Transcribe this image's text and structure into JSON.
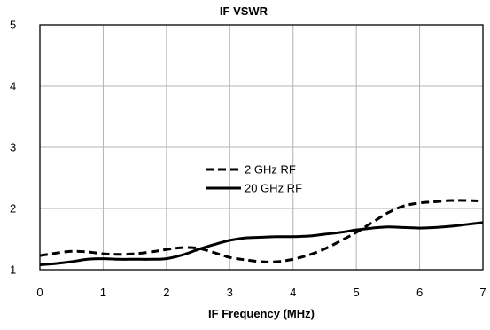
{
  "chart_data": {
    "type": "line",
    "title": "IF VSWR",
    "xlabel": "IF Frequency (MHz)",
    "ylabel": "",
    "xlim": [
      0,
      7
    ],
    "ylim": [
      1,
      5
    ],
    "x_ticks": [
      "0",
      "1",
      "2",
      "3",
      "4",
      "5",
      "6",
      "7"
    ],
    "y_ticks": [
      "1",
      "2",
      "3",
      "4",
      "5"
    ],
    "grid": true,
    "legend_position": "center",
    "series": [
      {
        "name": "2 GHz RF",
        "style": "dashed",
        "color": "#000000",
        "x": [
          0,
          0.25,
          0.5,
          0.75,
          1.0,
          1.25,
          1.5,
          1.75,
          2.0,
          2.25,
          2.5,
          2.75,
          3.0,
          3.25,
          3.5,
          3.75,
          4.0,
          4.25,
          4.5,
          4.75,
          5.0,
          5.25,
          5.5,
          5.75,
          6.0,
          6.25,
          6.5,
          6.75,
          7.0
        ],
        "values": [
          1.23,
          1.27,
          1.3,
          1.29,
          1.26,
          1.25,
          1.26,
          1.29,
          1.33,
          1.36,
          1.35,
          1.28,
          1.2,
          1.16,
          1.13,
          1.13,
          1.17,
          1.24,
          1.34,
          1.47,
          1.61,
          1.77,
          1.93,
          2.04,
          2.09,
          2.11,
          2.13,
          2.13,
          2.12
        ]
      },
      {
        "name": "20 GHz RF",
        "style": "solid",
        "color": "#000000",
        "x": [
          0,
          0.25,
          0.5,
          0.75,
          1.0,
          1.25,
          1.5,
          1.75,
          2.0,
          2.25,
          2.5,
          2.75,
          3.0,
          3.25,
          3.5,
          3.75,
          4.0,
          4.25,
          4.5,
          4.75,
          5.0,
          5.25,
          5.5,
          5.75,
          6.0,
          6.25,
          6.5,
          6.75,
          7.0
        ],
        "values": [
          1.08,
          1.1,
          1.13,
          1.17,
          1.18,
          1.17,
          1.17,
          1.17,
          1.18,
          1.24,
          1.33,
          1.41,
          1.48,
          1.52,
          1.53,
          1.54,
          1.54,
          1.55,
          1.58,
          1.61,
          1.65,
          1.68,
          1.7,
          1.69,
          1.68,
          1.69,
          1.71,
          1.74,
          1.77
        ]
      }
    ]
  }
}
